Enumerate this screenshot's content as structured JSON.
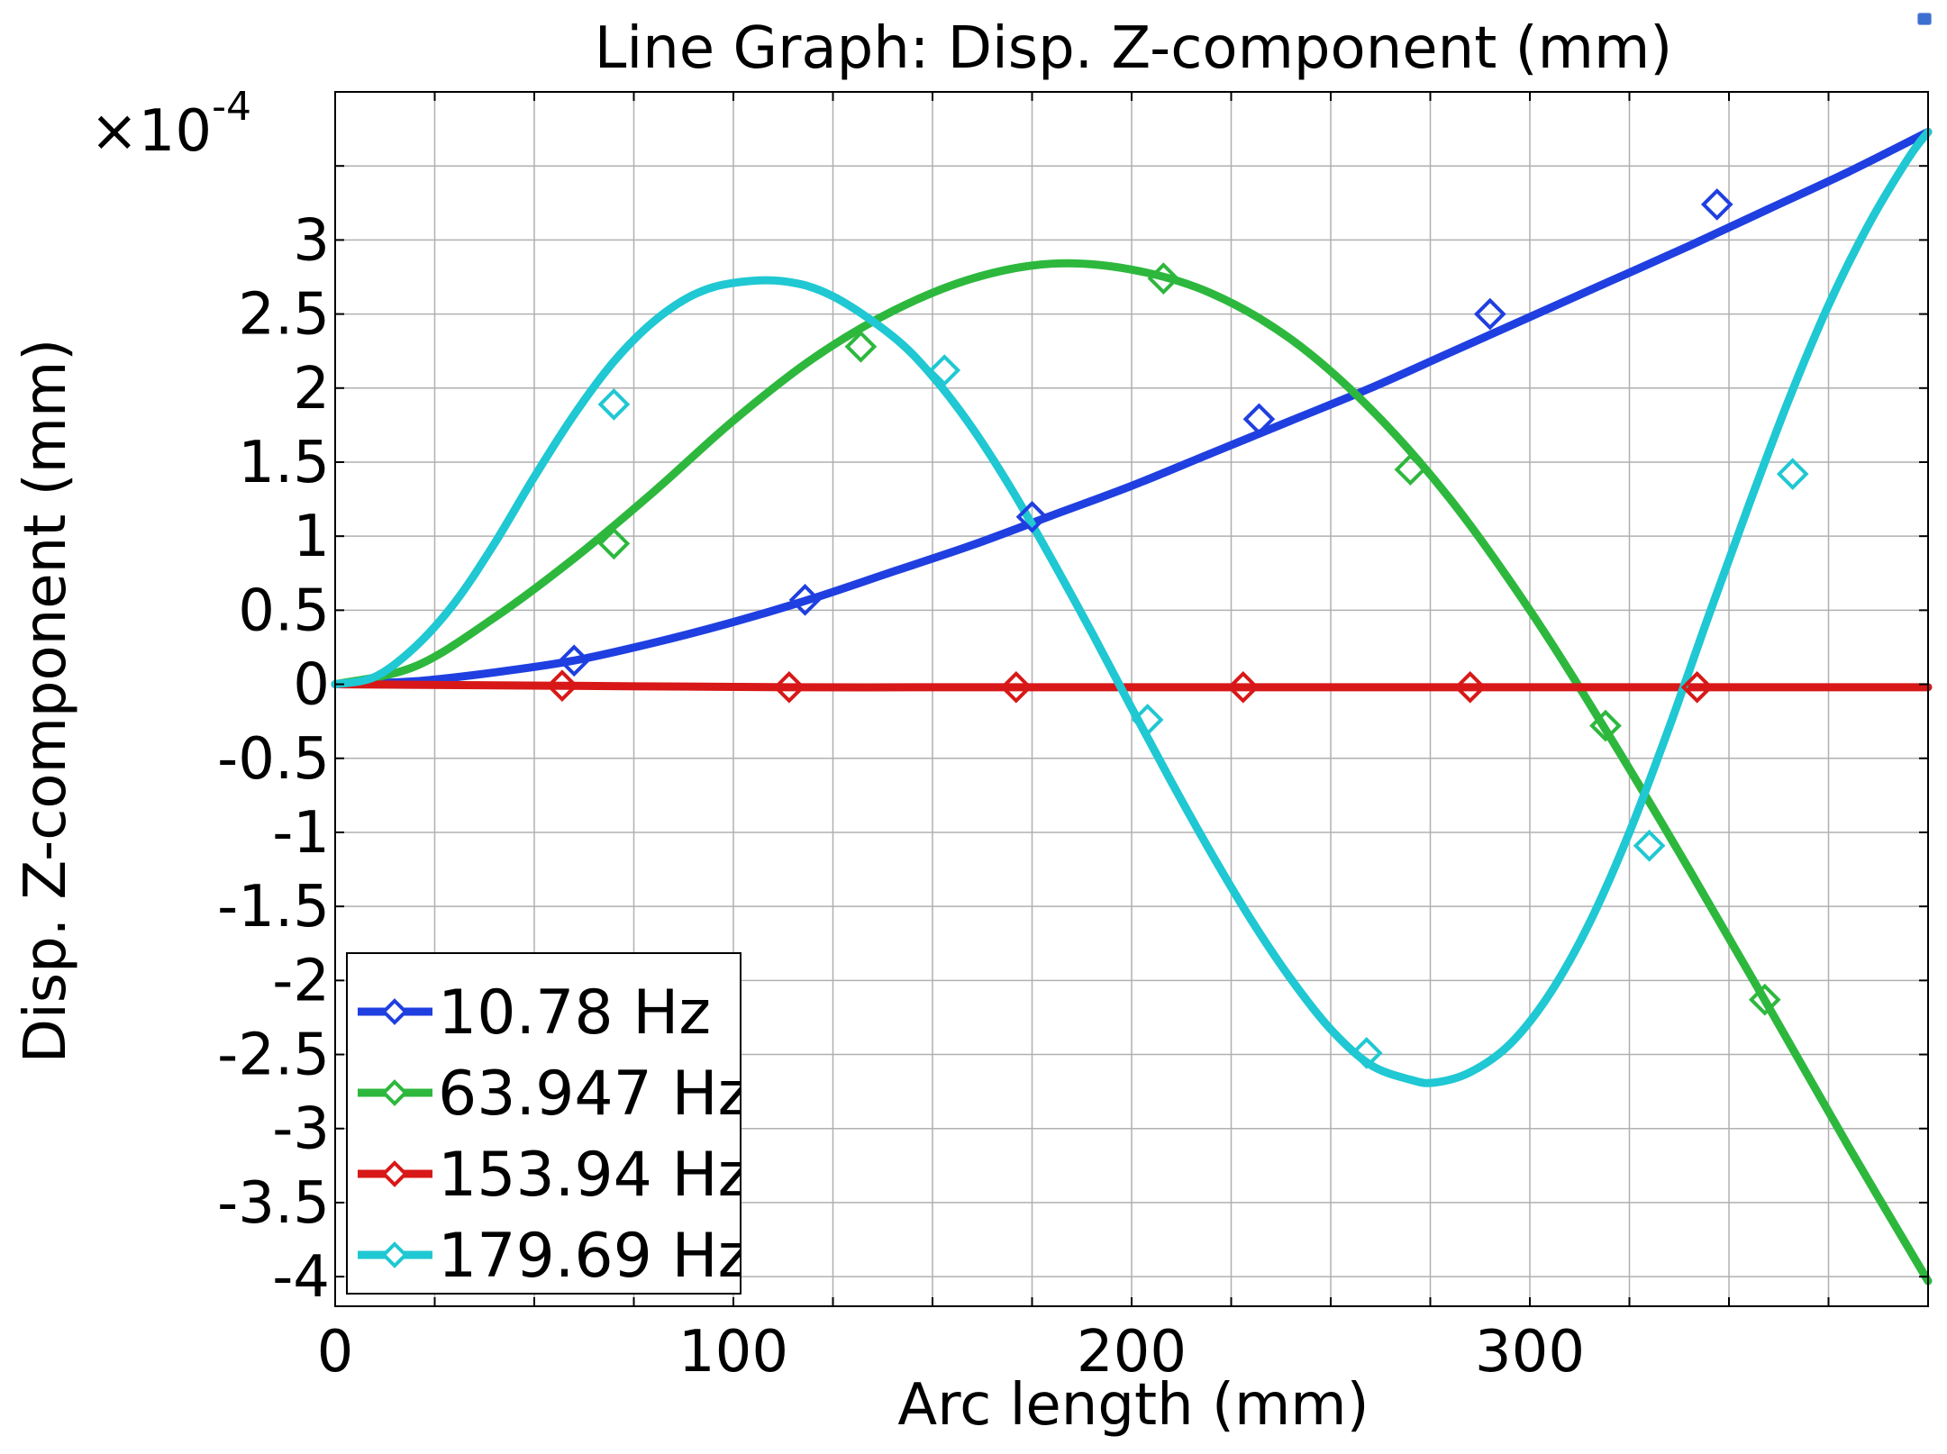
{
  "chart_data": {
    "type": "line",
    "title": "Line Graph: Disp. Z-component (mm)",
    "xlabel": "Arc length (mm)",
    "ylabel": "Disp. Z-component (mm)",
    "y_multiplier": "×10",
    "y_exponent": "-4",
    "xlim": [
      0,
      400
    ],
    "ylim": [
      -4.2,
      4.0
    ],
    "grid": true,
    "x_ticks": [
      0,
      100,
      200,
      300
    ],
    "x_tick_labels": [
      "0",
      "100",
      "200",
      "300"
    ],
    "x_minor_ticks": [
      25,
      50,
      75,
      125,
      150,
      175,
      225,
      250,
      275,
      325,
      350,
      375
    ],
    "y_ticks": [
      -4,
      -3.5,
      -3,
      -2.5,
      -2,
      -1.5,
      -1,
      -0.5,
      0,
      0.5,
      1,
      1.5,
      2,
      2.5,
      3
    ],
    "y_tick_labels": [
      "-4",
      "-3.5",
      "-3",
      "-2.5",
      "-2",
      "-1.5",
      "-1",
      "-0.5",
      "0",
      "0.5",
      "1",
      "1.5",
      "2",
      "2.5",
      "3"
    ],
    "y_extra_grid": [
      3.5
    ],
    "legend_position": "bottom-left",
    "series": [
      {
        "name": "10.78 Hz",
        "color": "#1f3fe0",
        "x": [
          0,
          20,
          40,
          60,
          80,
          100,
          120,
          140,
          160,
          180,
          200,
          220,
          240,
          260,
          280,
          300,
          320,
          340,
          360,
          380,
          400
        ],
        "values": [
          0,
          0.02,
          0.08,
          0.16,
          0.28,
          0.42,
          0.58,
          0.76,
          0.94,
          1.14,
          1.34,
          1.56,
          1.78,
          2.0,
          2.24,
          2.48,
          2.72,
          2.96,
          3.21,
          3.46,
          3.73
        ],
        "markers_x": [
          60,
          118,
          175,
          232,
          290,
          347
        ],
        "markers_y": [
          0.16,
          0.57,
          1.13,
          1.79,
          2.5,
          3.24
        ]
      },
      {
        "name": "63.947 Hz",
        "color": "#2db83d",
        "x": [
          0,
          20,
          40,
          60,
          80,
          100,
          120,
          140,
          160,
          180,
          200,
          220,
          240,
          260,
          280,
          300,
          320,
          340,
          360,
          380,
          400
        ],
        "values": [
          0,
          0.12,
          0.45,
          0.85,
          1.3,
          1.78,
          2.2,
          2.52,
          2.74,
          2.84,
          2.8,
          2.64,
          2.33,
          1.86,
          1.25,
          0.5,
          -0.35,
          -1.25,
          -2.18,
          -3.12,
          -4.03
        ],
        "markers_x": [
          70,
          132,
          208,
          270,
          319,
          359
        ],
        "markers_y": [
          0.95,
          2.28,
          2.74,
          1.45,
          -0.28,
          -2.13
        ]
      },
      {
        "name": "153.94 Hz",
        "color": "#d81818",
        "x": [
          0,
          57,
          114,
          171,
          228,
          285,
          342,
          400
        ],
        "values": [
          0,
          -0.01,
          -0.02,
          -0.02,
          -0.02,
          -0.02,
          -0.02,
          -0.02
        ],
        "markers_x": [
          57,
          114,
          171,
          228,
          285,
          342
        ],
        "markers_y": [
          -0.01,
          -0.02,
          -0.02,
          -0.02,
          -0.02,
          -0.02
        ]
      },
      {
        "name": "179.69 Hz",
        "color": "#1fc8d2",
        "x": [
          0,
          10,
          20,
          30,
          40,
          50,
          60,
          70,
          80,
          90,
          100,
          113,
          125,
          140,
          150,
          160,
          170,
          180,
          190,
          200,
          210,
          220,
          230,
          240,
          250,
          260,
          270,
          276,
          285,
          295,
          305,
          315,
          325,
          335,
          345,
          355,
          365,
          375,
          385,
          395,
          400
        ],
        "values": [
          0,
          0.05,
          0.25,
          0.55,
          0.95,
          1.4,
          1.82,
          2.18,
          2.45,
          2.63,
          2.71,
          2.72,
          2.62,
          2.35,
          2.08,
          1.73,
          1.31,
          0.84,
          0.35,
          -0.16,
          -0.66,
          -1.14,
          -1.59,
          -1.99,
          -2.33,
          -2.57,
          -2.67,
          -2.69,
          -2.62,
          -2.43,
          -2.09,
          -1.61,
          -1.0,
          -0.29,
          0.47,
          1.21,
          1.92,
          2.56,
          3.1,
          3.55,
          3.73
        ],
        "markers_x": [
          70,
          153,
          204,
          259,
          330,
          366
        ],
        "markers_y": [
          1.89,
          2.12,
          -0.24,
          -2.49,
          -1.09,
          1.42
        ]
      }
    ]
  }
}
